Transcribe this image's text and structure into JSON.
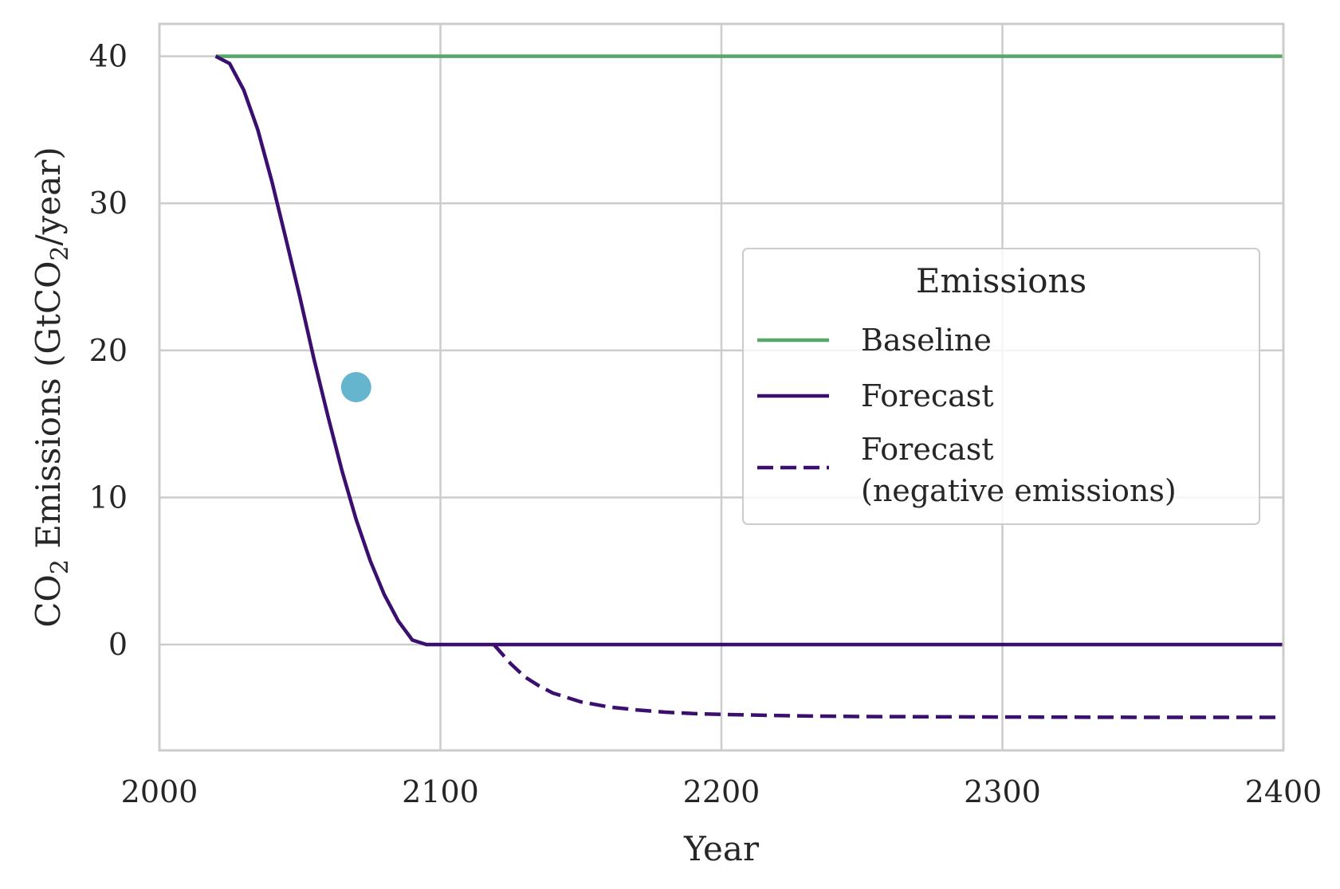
{
  "chart_data": {
    "type": "line",
    "xlabel": "Year",
    "ylabel": {
      "parts": [
        "CO",
        "2",
        " Emissions (GtCO",
        "2",
        "/year)"
      ]
    },
    "xlim": [
      2000,
      2400
    ],
    "ylim": [
      -7.2,
      42.2
    ],
    "x_ticks": [
      2000,
      2100,
      2200,
      2300,
      2400
    ],
    "y_ticks": [
      0,
      10,
      20,
      30,
      40
    ],
    "grid": true,
    "legend": {
      "title": "Emissions",
      "placement": "center-right",
      "entries": [
        {
          "label_lines": [
            "Baseline"
          ]
        },
        {
          "label_lines": [
            "Forecast"
          ]
        },
        {
          "label_lines": [
            "Forecast",
            "(negative emissions)"
          ]
        }
      ]
    },
    "series": [
      {
        "name": "Baseline",
        "color": "#55a868",
        "style": "solid",
        "x": [
          2020,
          2400
        ],
        "y": [
          40,
          40
        ]
      },
      {
        "name": "Forecast",
        "color": "#3b0f6f",
        "style": "solid",
        "x": [
          2020,
          2025,
          2030,
          2035,
          2040,
          2045,
          2050,
          2055,
          2060,
          2065,
          2070,
          2075,
          2080,
          2085,
          2090,
          2095,
          2100,
          2105,
          2110,
          2115,
          2120,
          2130,
          2200,
          2300,
          2400
        ],
        "y": [
          40,
          39.5,
          37.7,
          35.0,
          31.5,
          27.6,
          23.6,
          19.4,
          15.5,
          11.8,
          8.5,
          5.7,
          3.4,
          1.6,
          0.3,
          0.0,
          0.0,
          0.0,
          0.0,
          0.0,
          0.0,
          0.0,
          0.0,
          0.0,
          0.0
        ]
      },
      {
        "name": "Forecast (negative emissions)",
        "color": "#3b0f6f",
        "style": "dashed",
        "x": [
          2119,
          2125,
          2130,
          2135,
          2140,
          2150,
          2160,
          2170,
          2180,
          2190,
          2200,
          2225,
          2250,
          2300,
          2350,
          2400
        ],
        "y": [
          0.0,
          -1.3,
          -2.2,
          -2.8,
          -3.3,
          -3.9,
          -4.25,
          -4.45,
          -4.6,
          -4.7,
          -4.75,
          -4.85,
          -4.9,
          -4.93,
          -4.95,
          -4.95
        ]
      }
    ],
    "points": [
      {
        "x": 2070,
        "y": 17.5,
        "color": "#64b5cd"
      }
    ]
  }
}
